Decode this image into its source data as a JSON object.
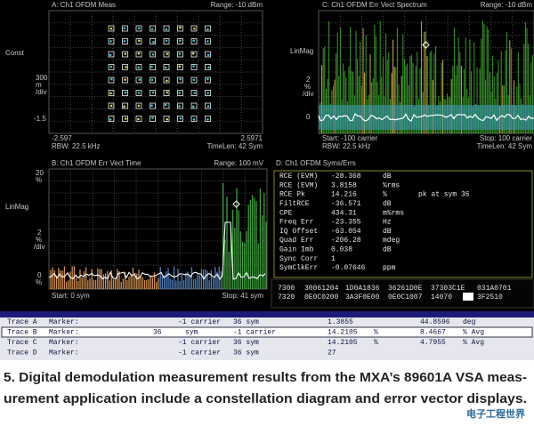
{
  "panel_a": {
    "title": "A: Ch1 OFDM Meas",
    "range": "Range: -10 dBm",
    "y_labels": [
      "Const",
      "300",
      "m",
      "/div",
      "-1.5"
    ],
    "x_start": "-2.597",
    "x_stop": "2.5971",
    "rbw": "RBW: 22.5 kHz",
    "time_len": "TimeLen: 42 Sym"
  },
  "panel_c": {
    "title": "C: Ch1 OFDM Err Vect Spectrum",
    "range": "Range: -10 dBm",
    "y_labels": [
      "LinMag",
      "2",
      "%",
      "/div",
      "0"
    ],
    "start": "Start: -100 carrier",
    "stop": "Stop: 100 carrier",
    "rbw": "RBW: 22.5 kHz",
    "time_len": "TimeLen: 42 Sym"
  },
  "panel_b": {
    "title": "B: Ch1 OFDM Err Vect Time",
    "range": "Range: 100 mV",
    "y_labels": [
      "20",
      "%",
      "LinMag",
      "2",
      "%",
      "/div",
      "0",
      "%"
    ],
    "start": "Start: 0 sym",
    "stop": "Stop: 41 sym"
  },
  "panel_d": {
    "title": "D: Ch1 OFDM Syms/Errs",
    "rows": [
      [
        "RCE (EVM)",
        "-28.368",
        "dB"
      ],
      [
        "RCE (EVM)",
        "3.8158",
        "%rms"
      ],
      [
        "RCE Pk",
        "14.216",
        "%",
        "pk at sym 36"
      ],
      [
        "FiltRCE",
        "-36.571",
        "dB"
      ],
      [
        "CPE",
        "434.31",
        "m%rms"
      ],
      [
        "Freq Err",
        "-23.355",
        "Hz"
      ],
      [
        "IQ Offset",
        "-63.054",
        "dB"
      ],
      [
        "Quad Err",
        "-206.28",
        "mdeg"
      ],
      [
        "Gain Imb",
        "0.038",
        "dB"
      ],
      [
        "Sync Corr",
        "1"
      ],
      [
        "SymClkErr",
        "-0.07646",
        "ppm"
      ]
    ],
    "hex_rows": [
      [
        "7300",
        "30061204",
        "1D0A1836",
        "36261D0E",
        "37303C1E",
        "031A0701"
      ],
      [
        "7320",
        "0E0C0200",
        "3A3F0E00",
        "0E0C1007",
        "14070",
        "3F2510"
      ]
    ]
  },
  "traces": {
    "rows": [
      [
        "Trace A",
        "Marker:",
        "-1 carrier",
        "36 sym",
        "1.3855",
        "44.8596",
        "deg"
      ],
      [
        "Trace B",
        "Marker:",
        "36",
        "sym",
        "-1 carrier",
        "14.2105",
        "%",
        "8.4667",
        "% Avg"
      ],
      [
        "Trace C",
        "Marker:",
        "-1 carrier",
        "36 sym",
        "14.2105",
        "%",
        "4.7955",
        "% Avg"
      ],
      [
        "Trace D",
        "Marker:",
        "-1 carrier",
        "36 sym",
        "27"
      ]
    ]
  },
  "caption": {
    "lines": [
      "5. Digital demodulation measurement results from the MXA’s 89601A VSA meas-",
      "urement application include a constellation diagram  and error vector displays."
    ]
  },
  "logo": "电子工程世界"
}
